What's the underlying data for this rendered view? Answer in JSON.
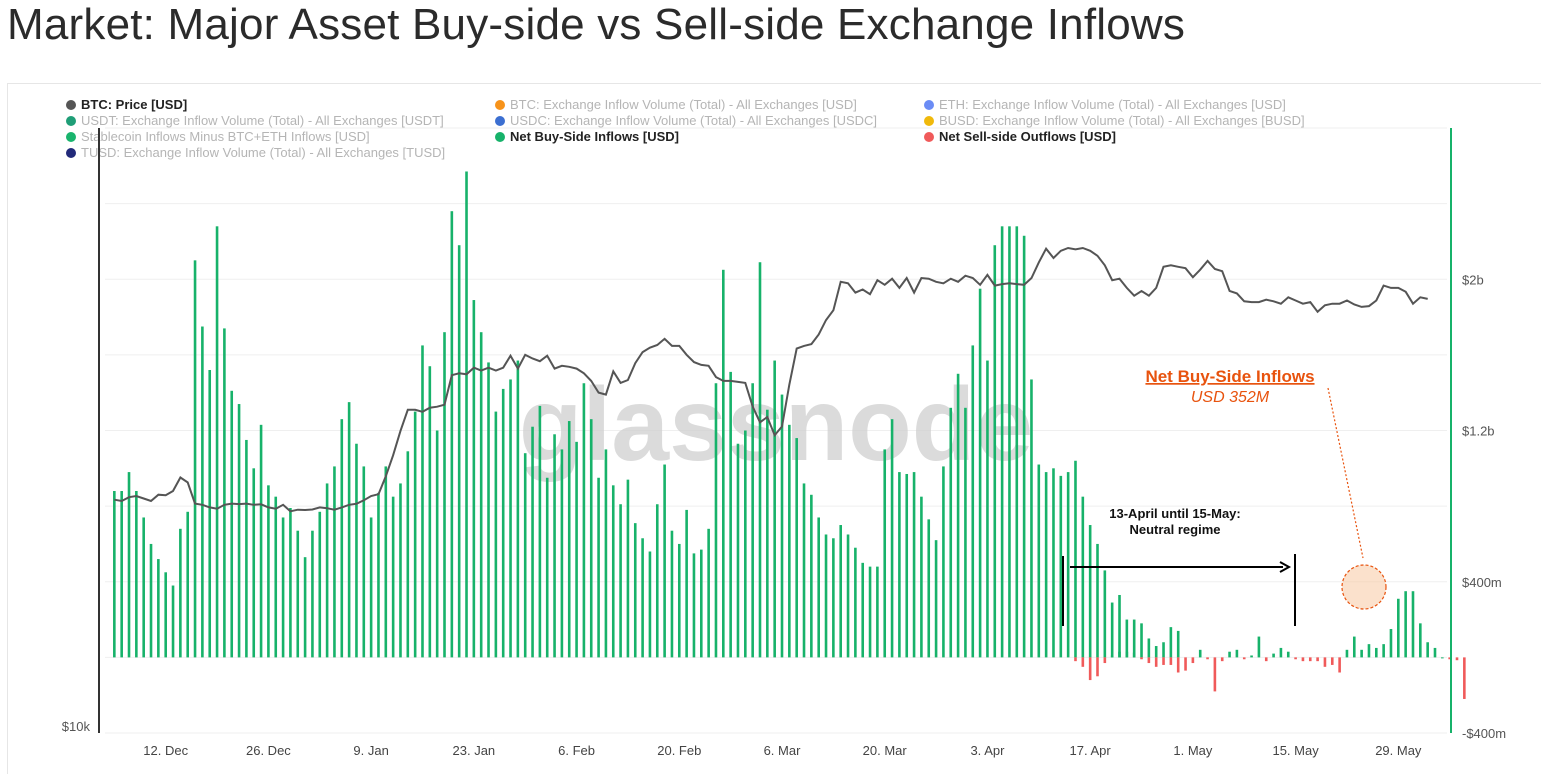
{
  "page": {
    "title": "Market: Major Asset Buy-side vs Sell-side Exchange Inflows"
  },
  "watermark": "glassnode",
  "legend": [
    {
      "label": "BTC: Price [USD]",
      "color": "#555555",
      "active": true
    },
    {
      "label": "USDT: Exchange Inflow Volume (Total) - All Exchanges [USDT]",
      "color": "#1f9e77",
      "active": false
    },
    {
      "label": "Stablecoin Inflows Minus BTC+ETH Inflows [USD]",
      "color": "#19b46d",
      "active": false
    },
    {
      "label": "TUSD: Exchange Inflow Volume (Total) - All Exchanges [TUSD]",
      "color": "#222a7a",
      "active": false
    },
    {
      "label": "BTC: Exchange Inflow Volume (Total) - All Exchanges [USD]",
      "color": "#f7931a",
      "active": false
    },
    {
      "label": "USDC: Exchange Inflow Volume (Total) - All Exchanges [USDC]",
      "color": "#3c6fd1",
      "active": false
    },
    {
      "label": "Net Buy-Side Inflows [USD]",
      "color": "#17b26a",
      "active": true
    },
    {
      "label": "ETH: Exchange Inflow Volume (Total) - All Exchanges [USD]",
      "color": "#6b8cf5",
      "active": false
    },
    {
      "label": "BUSD: Exchange Inflow Volume (Total) - All Exchanges [BUSD]",
      "color": "#f0b90b",
      "active": false
    },
    {
      "label": "Net Sell-side Outflows [USD]",
      "color": "#f05a5a",
      "active": true
    }
  ],
  "colors": {
    "buy": "#17b26a",
    "sell": "#f05a5a",
    "price": "#555555",
    "accent": "#e8530e"
  },
  "annotations": {
    "callout_title": "Net Buy-Side Inflows",
    "callout_value": "USD 352M",
    "regime_line1": "13-April until 15-May:",
    "regime_line2": "Neutral regime"
  },
  "chart_data": {
    "type": "bar",
    "x_ticks": [
      "12. Dec",
      "26. Dec",
      "9. Jan",
      "23. Jan",
      "6. Feb",
      "20. Feb",
      "6. Mar",
      "20. Mar",
      "3. Apr",
      "17. Apr",
      "1. May",
      "15. May",
      "29. May"
    ],
    "x_range": [
      "2022-12-04",
      "2023-06-03"
    ],
    "y_right_ticks": [
      "$2b",
      "$1.2b",
      "$400m",
      "-$400m"
    ],
    "y_right_range": [
      -400,
      2800
    ],
    "y_right_unit": "USD millions",
    "y_left_ticks": [
      "$10k"
    ],
    "series": [
      {
        "name": "Net Buy-Side Inflows [USD]",
        "start_date": "2022-12-05",
        "step_days": 1,
        "values": [
          880,
          880,
          980,
          880,
          740,
          600,
          520,
          450,
          380,
          680,
          770,
          2100,
          1750,
          1520,
          2280,
          1740,
          1410,
          1340,
          1150,
          1000,
          1230,
          910,
          850,
          740,
          790,
          670,
          530,
          670,
          770,
          920,
          1010,
          1260,
          1350,
          1130,
          1010,
          740,
          870,
          1010,
          850,
          920,
          1090,
          1300,
          1650,
          1540,
          1200,
          1720,
          2360,
          2180,
          2570,
          1890,
          1720,
          1560,
          1300,
          1420,
          1470,
          1570,
          1080,
          1220,
          1330,
          950,
          1180,
          1100,
          1250,
          1140,
          1450,
          1260,
          950,
          1100,
          910,
          810,
          940,
          710,
          630,
          560,
          810,
          1020,
          670,
          600,
          780,
          550,
          570,
          680,
          1450,
          2050,
          1510,
          1130,
          1200,
          1450,
          2090,
          1310,
          1570,
          1390,
          1230,
          1160,
          920,
          860,
          740,
          650,
          630,
          700,
          650,
          580,
          500,
          480,
          480,
          1100,
          1260,
          980,
          970,
          980,
          850,
          730,
          620,
          1010,
          1320,
          1500,
          1320,
          1650,
          1950,
          1570,
          2180,
          2280,
          2280,
          2280,
          2230,
          1470,
          1020,
          980,
          1000,
          960,
          980,
          1040,
          850,
          700,
          600,
          460,
          290,
          330,
          200,
          200,
          180,
          100,
          60,
          80,
          160,
          140
        ],
        "neg_start_date": "2023-04-15",
        "neg_values": [
          -20,
          -50,
          -120,
          -100,
          -30,
          10,
          30,
          30,
          25,
          -10,
          -30,
          -50,
          -40,
          -40,
          -80,
          -70,
          -30,
          40,
          -10,
          -180,
          -20,
          30,
          40,
          -10,
          10,
          110,
          -20,
          20,
          50,
          30,
          -10,
          -20,
          -20,
          -20,
          -50,
          -40,
          -80,
          40,
          110,
          40,
          70,
          50,
          70,
          150,
          310,
          350,
          350,
          180,
          80,
          50,
          0,
          -10,
          -15,
          -220
        ],
        "color": "#17b26a"
      },
      {
        "name": "BTC: Price [USD]",
        "axis": "left (log)",
        "start_date": "2022-12-05",
        "step_days": 1,
        "values": [
          17000,
          16950,
          17100,
          17150,
          17050,
          16950,
          17200,
          17180,
          17350,
          17900,
          17700,
          16850,
          16800,
          16700,
          16650,
          16800,
          16850,
          16830,
          16850,
          16800,
          16820,
          16700,
          16650,
          16800,
          16550,
          16610,
          16600,
          16620,
          16700,
          16670,
          16610,
          16700,
          16800,
          16840,
          16980,
          17150,
          17220,
          17950,
          18850,
          19950,
          20950,
          20950,
          20850,
          21050,
          21100,
          21200,
          22700,
          22800,
          22750,
          23100,
          22950,
          23100,
          22950,
          23100,
          23750,
          23050,
          23800,
          23600,
          23450,
          23750,
          23050,
          23200,
          23150,
          23050,
          22800,
          22400,
          21800,
          21700,
          22900,
          22300,
          22450,
          23350,
          23950,
          24200,
          24350,
          24700,
          24300,
          24300,
          23800,
          23400,
          23250,
          23200,
          22600,
          22400,
          22400,
          22350,
          22300,
          21100,
          20350,
          20600,
          19750,
          20150,
          22200,
          24150,
          24300,
          24400,
          24950,
          25800,
          26400,
          28200,
          28100,
          27500,
          27700,
          27400,
          28300,
          28000,
          28400,
          27800,
          28450,
          27500,
          28450,
          28400,
          28200,
          28100,
          28400,
          28200,
          28600,
          28450,
          28000,
          28650,
          27950,
          28050,
          28100,
          28050,
          28000,
          28450,
          29500,
          30450,
          29800,
          30300,
          30500,
          30400,
          30500,
          30300,
          29950,
          29300,
          28300,
          28400,
          27800,
          27300,
          27600,
          27300,
          27800,
          29200,
          29300,
          29200,
          29100,
          28500,
          29000,
          29600,
          29050,
          28900,
          27600,
          27450,
          26950,
          26900,
          26900,
          27050,
          26950,
          26800,
          27200,
          27000,
          26800,
          26900,
          26300,
          26700,
          26800,
          26800,
          27000,
          26750,
          26600,
          26650,
          27000,
          27950,
          27800,
          27800,
          27550,
          26800,
          27200,
          27100
        ]
      }
    ]
  }
}
